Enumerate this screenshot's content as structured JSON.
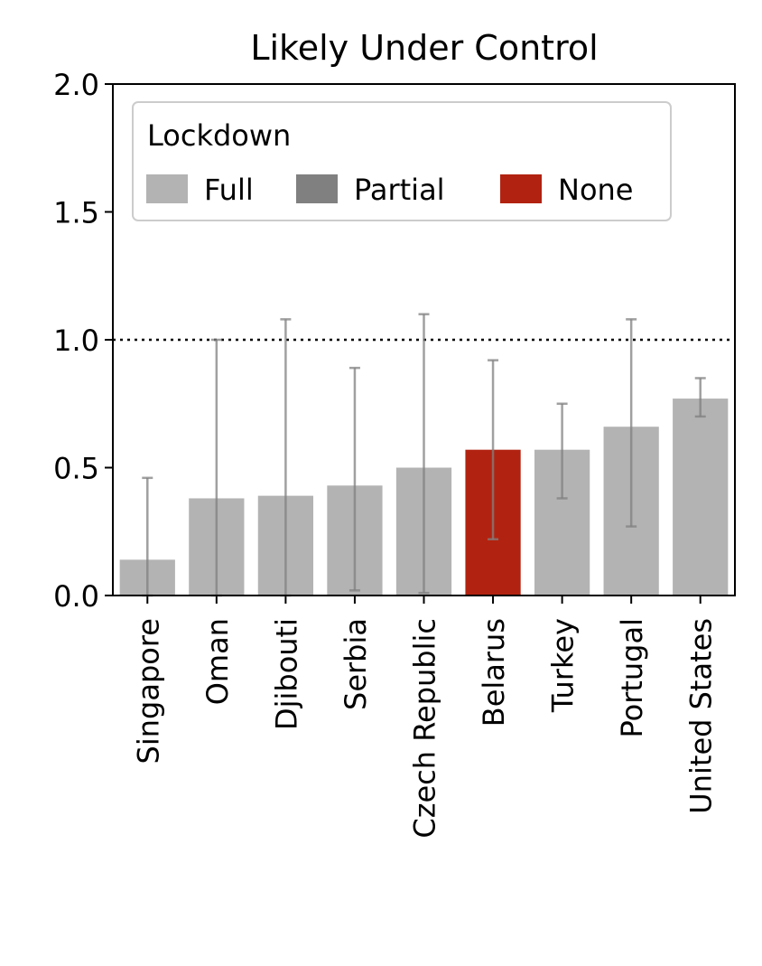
{
  "chart_data": {
    "type": "bar",
    "title": "Likely Under Control",
    "xlabel": "",
    "ylabel": "",
    "ylim": [
      0,
      2.0
    ],
    "yticks": [
      "0.0",
      "0.5",
      "1.0",
      "1.5",
      "2.0"
    ],
    "reference_line": 1.0,
    "categories": [
      "Singapore",
      "Oman",
      "Djibouti",
      "Serbia",
      "Czech Republic",
      "Belarus",
      "Turkey",
      "Portugal",
      "United States"
    ],
    "values": [
      0.14,
      0.38,
      0.39,
      0.43,
      0.5,
      0.57,
      0.57,
      0.66,
      0.77
    ],
    "error_low": [
      0.0,
      0.0,
      0.0,
      0.02,
      0.01,
      0.22,
      0.38,
      0.27,
      0.7
    ],
    "error_high": [
      0.46,
      1.0,
      1.08,
      0.89,
      1.1,
      0.92,
      0.75,
      1.08,
      0.85
    ],
    "lockdown": [
      "Full",
      "Full",
      "Full",
      "Full",
      "Full",
      "None",
      "Full",
      "Full",
      "Full"
    ],
    "legend": {
      "title": "Lockdown",
      "placement": "top-left",
      "entries": [
        {
          "label": "Full",
          "color": "#b3b3b3"
        },
        {
          "label": "Partial",
          "color": "#808080"
        },
        {
          "label": "None",
          "color": "#b22210"
        }
      ]
    },
    "grid": false
  }
}
